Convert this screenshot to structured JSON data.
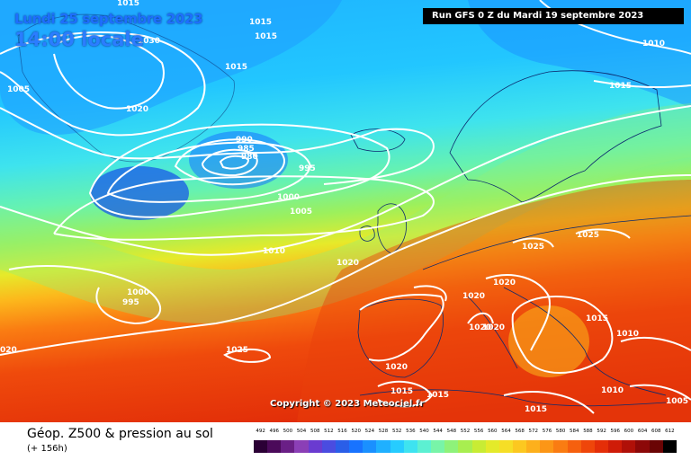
{
  "header": {
    "date": "Lundi 25 septembre 2023",
    "time": "14:00 locale",
    "run": "Run GFS 0 Z du Mardi 19 septembre 2023"
  },
  "copyright": "Copyright © 2023 Meteociel.fr",
  "footer": {
    "title": "Géop. Z500 & pression au sol",
    "subtitle": "(+ 156h)"
  },
  "legend": {
    "values": [
      "492",
      "496",
      "500",
      "504",
      "508",
      "512",
      "516",
      "520",
      "524",
      "528",
      "532",
      "536",
      "540",
      "544",
      "548",
      "552",
      "556",
      "560",
      "564",
      "568",
      "572",
      "576",
      "580",
      "584",
      "588",
      "592",
      "596",
      "600",
      "604",
      "608",
      "612"
    ],
    "colors": [
      "#2b0035",
      "#4b0a5a",
      "#6a1f86",
      "#8b3fb6",
      "#6a3bd0",
      "#4a4ce0",
      "#2a5ee8",
      "#1873ff",
      "#1a90ff",
      "#1fb0ff",
      "#26ccff",
      "#3ee3f0",
      "#5cf0d2",
      "#78f4a8",
      "#8ef27a",
      "#a8ee50",
      "#c8ec34",
      "#e4ea2a",
      "#f6de26",
      "#fcc820",
      "#fdb01c",
      "#fc9616",
      "#fa7c12",
      "#f6600e",
      "#ef460a",
      "#e42e08",
      "#cf1c08",
      "#b01008",
      "#8c0808",
      "#6a0404",
      "#000000"
    ]
  },
  "isobars": [
    {
      "id": "a",
      "value": "1015"
    },
    {
      "id": "b",
      "value": "1015"
    },
    {
      "id": "c",
      "value": "1030"
    },
    {
      "id": "d",
      "value": "1015"
    },
    {
      "id": "e",
      "value": "1005"
    },
    {
      "id": "f",
      "value": "1020"
    },
    {
      "id": "g",
      "value": "990"
    },
    {
      "id": "h",
      "value": "985"
    },
    {
      "id": "i",
      "value": "980"
    },
    {
      "id": "j",
      "value": "995"
    },
    {
      "id": "k",
      "value": "1000"
    },
    {
      "id": "l",
      "value": "1005"
    },
    {
      "id": "m",
      "value": "1015"
    },
    {
      "id": "n",
      "value": "1010"
    },
    {
      "id": "o",
      "value": "1020"
    },
    {
      "id": "p",
      "value": "1000"
    },
    {
      "id": "q",
      "value": "995"
    },
    {
      "id": "r",
      "value": "1025"
    },
    {
      "id": "s",
      "value": "020"
    },
    {
      "id": "t",
      "value": "1025"
    },
    {
      "id": "u",
      "value": "1025"
    },
    {
      "id": "v",
      "value": "1020"
    },
    {
      "id": "w",
      "value": "1020"
    },
    {
      "id": "x",
      "value": "1020"
    },
    {
      "id": "y",
      "value": "1020"
    },
    {
      "id": "z",
      "value": "1015"
    },
    {
      "id": "aa",
      "value": "1010"
    },
    {
      "id": "ab",
      "value": "1020"
    },
    {
      "id": "ac",
      "value": "1015"
    },
    {
      "id": "ad",
      "value": "1015"
    },
    {
      "id": "ae",
      "value": "1015"
    },
    {
      "id": "af",
      "value": "1010"
    },
    {
      "id": "ag",
      "value": "1005"
    },
    {
      "id": "ah",
      "value": "1010"
    },
    {
      "id": "ai",
      "value": "1015"
    }
  ]
}
